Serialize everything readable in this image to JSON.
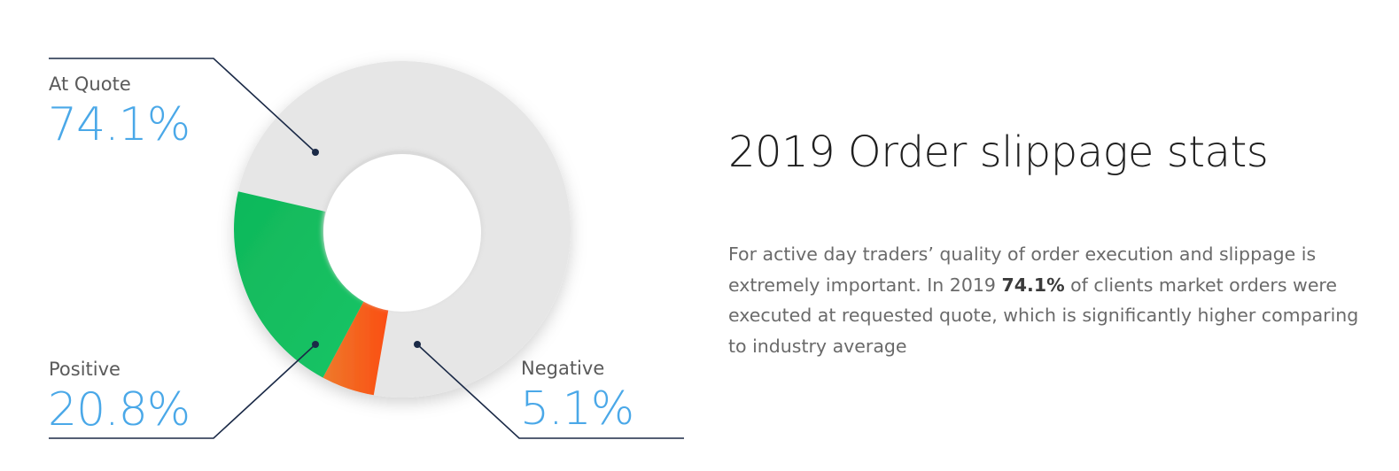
{
  "chart_data": {
    "type": "pie",
    "title": "2019 Order slippage stats",
    "slices": [
      {
        "name": "At Quote",
        "value": 74.1,
        "label": "74.1%",
        "color": "#e6e6e6"
      },
      {
        "name": "Positive",
        "value": 20.8,
        "label": "20.8%",
        "color": "#14c25e"
      },
      {
        "name": "Negative",
        "value": 5.1,
        "label": "5.1%",
        "color": "#f4611e"
      }
    ],
    "legend": "leader-line labels"
  },
  "text": {
    "title": "2019 Order slippage stats",
    "desc_before": "For active day traders’ quality of order execution and slippage is extremely important. In 2019 ",
    "desc_bold": "74.1%",
    "desc_after": " of clients market orders were executed at requested quote, which is significantly higher comparing to industry average"
  }
}
